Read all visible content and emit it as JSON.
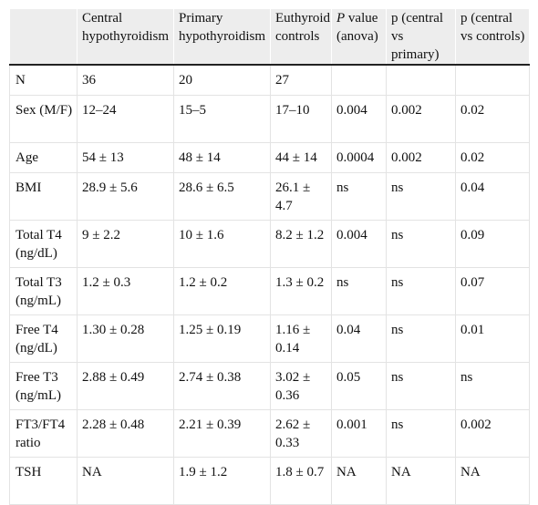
{
  "table": {
    "headers": [
      "",
      "Central hypothyroidism",
      "Primary hypothyroidism",
      "Euthyroid controls",
      "value (anova)",
      "p (central vs primary)",
      "p (central vs controls)"
    ],
    "p_italic": "P",
    "rows": [
      {
        "label": "N",
        "central": "36",
        "primary": "20",
        "controls": "27",
        "p_anova": "",
        "p_cp": "",
        "p_cc": ""
      },
      {
        "label": "Sex (M/F)",
        "central": "12–24",
        "primary": "15–5",
        "controls": "17–10",
        "p_anova": "0.004",
        "p_cp": "0.002",
        "p_cc": "0.02"
      },
      {
        "label": "Age",
        "central": "54 ± 13",
        "primary": "48 ± 14",
        "controls": "44 ± 14",
        "p_anova": "0.0004",
        "p_cp": "0.002",
        "p_cc": "0.02"
      },
      {
        "label": "BMI",
        "central": "28.9 ± 5.6",
        "primary": "28.6 ± 6.5",
        "controls": "26.1 ± 4.7",
        "p_anova": "ns",
        "p_cp": "ns",
        "p_cc": "0.04"
      },
      {
        "label": "Total T4 (ng/dL)",
        "central": "9 ± 2.2",
        "primary": "10 ± 1.6",
        "controls": "8.2 ± 1.2",
        "p_anova": "0.004",
        "p_cp": "ns",
        "p_cc": "0.09"
      },
      {
        "label": "Total T3 (ng/mL)",
        "central": "1.2 ± 0.3",
        "primary": "1.2 ± 0.2",
        "controls": "1.3 ± 0.2",
        "p_anova": "ns",
        "p_cp": "ns",
        "p_cc": "0.07"
      },
      {
        "label": "Free T4 (ng/dL)",
        "central": "1.30 ± 0.28",
        "primary": "1.25 ± 0.19",
        "controls": "1.16 ± 0.14",
        "p_anova": "0.04",
        "p_cp": "ns",
        "p_cc": "0.01"
      },
      {
        "label": "Free T3 (ng/mL)",
        "central": "2.88 ± 0.49",
        "primary": "2.74 ± 0.38",
        "controls": "3.02 ± 0.36",
        "p_anova": "0.05",
        "p_cp": "ns",
        "p_cc": "ns"
      },
      {
        "label": "FT3/FT4 ratio",
        "central": "2.28 ± 0.48",
        "primary": "2.21 ± 0.39",
        "controls": "2.62 ± 0.33",
        "p_anova": "0.001",
        "p_cp": "ns",
        "p_cc": "0.002"
      },
      {
        "label": "TSH",
        "central": "NA",
        "primary": "1.9 ± 1.2",
        "controls": "1.8 ± 0.7",
        "p_anova": "NA",
        "p_cp": "NA",
        "p_cc": "NA"
      }
    ]
  }
}
